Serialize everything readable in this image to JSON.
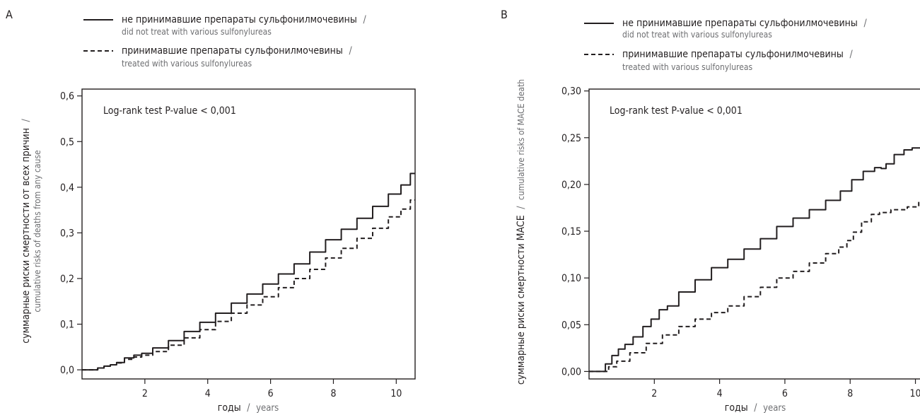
{
  "legend": {
    "solid_ru": "не принимавшие препараты сульфонилмочевины",
    "solid_en": "did not treat with various sulfonylureas",
    "dashed_ru": "принимавшие препараты сульфонилмочевины",
    "dashed_en": "treated with various sulfonylureas",
    "slash": "/"
  },
  "x_axis_label": {
    "ru": "годы",
    "en": "years"
  },
  "annotation": "Log-rank test P-value < 0,001",
  "chart_data": [
    {
      "panel": "A",
      "type": "line",
      "ylabel_ru": "суммарные риски смертности от всех причин",
      "ylabel_en": "cumulative risks of deaths from any cause",
      "xlim": [
        0,
        10.6
      ],
      "ylim": [
        -0.02,
        0.615
      ],
      "xticks": [
        2,
        4,
        6,
        8,
        10
      ],
      "xtick_labels": [
        "2",
        "4",
        "6",
        "8",
        "10"
      ],
      "yticks": [
        0,
        0.1,
        0.2,
        0.3,
        0.4,
        0.5,
        0.6
      ],
      "ytick_labels": [
        "0,0",
        "0,1",
        "0,2",
        "0,3",
        "0,4",
        "0,5",
        "0,6"
      ],
      "grid": false,
      "series": [
        {
          "name": "не принимавшие препараты сульфонилмочевины / did not treat with various sulfonylureas",
          "style": "solid",
          "x": [
            0,
            0.4,
            0.6,
            0.8,
            1.0,
            1.2,
            1.5,
            1.8,
            2.0,
            2.5,
            3.0,
            3.5,
            4.0,
            4.5,
            5.0,
            5.5,
            6.0,
            6.5,
            7.0,
            7.5,
            8.0,
            8.5,
            9.0,
            9.5,
            10.0,
            10.3,
            10.6
          ],
          "y": [
            0,
            0,
            0.004,
            0.008,
            0.011,
            0.016,
            0.026,
            0.032,
            0.036,
            0.048,
            0.064,
            0.084,
            0.104,
            0.124,
            0.146,
            0.166,
            0.188,
            0.21,
            0.232,
            0.258,
            0.285,
            0.308,
            0.332,
            0.358,
            0.385,
            0.405,
            0.43
          ]
        },
        {
          "name": "принимавшие препараты сульфонилмочевины / treated with various sulfonylureas",
          "style": "dashed",
          "x": [
            0,
            0.4,
            0.6,
            0.8,
            1.0,
            1.2,
            1.5,
            1.8,
            2.0,
            2.5,
            3.0,
            3.5,
            4.0,
            4.5,
            5.0,
            5.5,
            6.0,
            6.5,
            7.0,
            7.5,
            8.0,
            8.5,
            9.0,
            9.5,
            10.0,
            10.3,
            10.6
          ],
          "y": [
            0,
            0,
            0.004,
            0.008,
            0.011,
            0.015,
            0.023,
            0.028,
            0.032,
            0.04,
            0.054,
            0.07,
            0.088,
            0.106,
            0.124,
            0.142,
            0.16,
            0.18,
            0.2,
            0.22,
            0.245,
            0.266,
            0.288,
            0.31,
            0.335,
            0.352,
            0.372
          ]
        }
      ]
    },
    {
      "panel": "B",
      "type": "line",
      "ylabel_ru": "суммарные риски смертности MACE",
      "ylabel_en": "cumulative risks of MACE death",
      "xlim": [
        0,
        10.4
      ],
      "ylim": [
        -0.008,
        0.302
      ],
      "xticks": [
        2,
        4,
        6,
        8,
        10
      ],
      "xtick_labels": [
        "2",
        "4",
        "6",
        "8",
        "10"
      ],
      "yticks": [
        0,
        0.05,
        0.1,
        0.15,
        0.2,
        0.25,
        0.3
      ],
      "ytick_labels": [
        "0,00",
        "0,05",
        "0,10",
        "0,15",
        "0,20",
        "0,25",
        "0,30"
      ],
      "grid": false,
      "series": [
        {
          "name": "не принимавшие препараты сульфонилмочевины / did not treat with various sulfonylureas",
          "style": "solid",
          "x": [
            0,
            0.4,
            0.6,
            0.8,
            1.0,
            1.2,
            1.5,
            1.8,
            2.0,
            2.3,
            2.5,
            3.0,
            3.5,
            4.0,
            4.5,
            5.0,
            5.5,
            6.0,
            6.5,
            7.0,
            7.5,
            7.9,
            8.2,
            8.6,
            8.9,
            9.0,
            9.2,
            9.5,
            9.8,
            10.0,
            10.4
          ],
          "y": [
            0,
            0,
            0.008,
            0.017,
            0.024,
            0.029,
            0.037,
            0.048,
            0.056,
            0.066,
            0.07,
            0.085,
            0.098,
            0.111,
            0.12,
            0.131,
            0.142,
            0.155,
            0.164,
            0.173,
            0.183,
            0.193,
            0.205,
            0.214,
            0.218,
            0.217,
            0.222,
            0.232,
            0.237,
            0.239,
            0.241
          ]
        },
        {
          "name": "принимавшие препараты сульфонилмочевины / treated with various sulfonylureas",
          "style": "dashed",
          "x": [
            0,
            0.5,
            0.7,
            1.0,
            1.5,
            2.0,
            2.5,
            3.0,
            3.5,
            4.0,
            4.5,
            5.0,
            5.5,
            6.0,
            6.5,
            7.0,
            7.5,
            7.8,
            8.0,
            8.2,
            8.5,
            8.8,
            9.0,
            9.5,
            10.0,
            10.2,
            10.4
          ],
          "y": [
            0,
            0,
            0.005,
            0.011,
            0.02,
            0.03,
            0.039,
            0.048,
            0.056,
            0.063,
            0.07,
            0.08,
            0.09,
            0.1,
            0.107,
            0.116,
            0.126,
            0.133,
            0.14,
            0.149,
            0.16,
            0.168,
            0.17,
            0.173,
            0.176,
            0.183,
            0.189
          ]
        }
      ]
    }
  ]
}
